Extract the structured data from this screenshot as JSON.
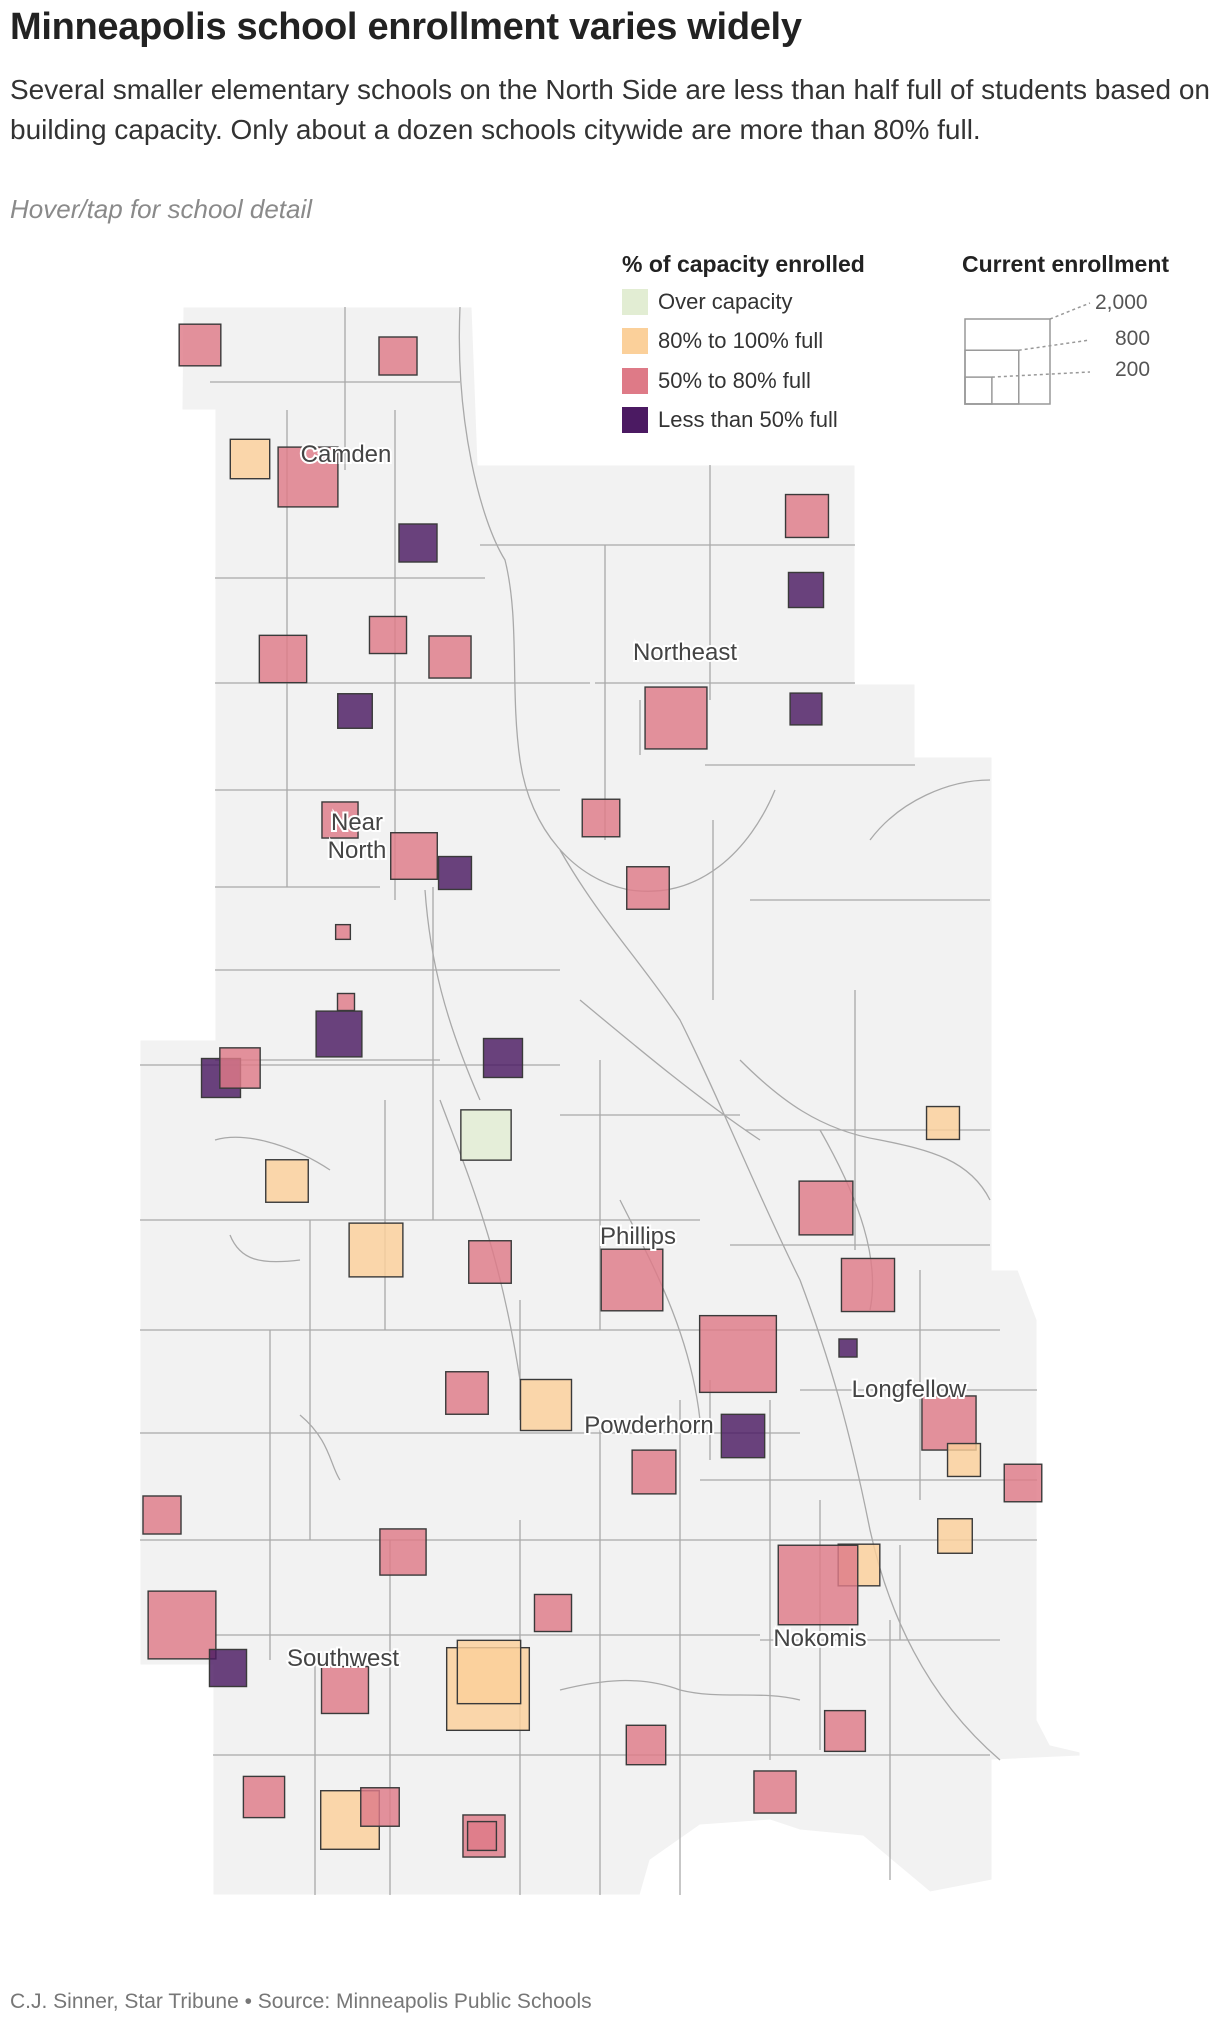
{
  "header": {
    "title": "Minneapolis school enrollment varies widely",
    "subtitle": "Several smaller elementary schools on the North Side are less than half full of students based on building capacity. Only about a dozen schools citywide are more than 80% full.",
    "hint": "Hover/tap for school detail"
  },
  "legend": {
    "color_title": "% of capacity enrolled",
    "color_items": [
      {
        "label": "Over capacity",
        "color": "#e2edd3"
      },
      {
        "label": "80% to 100% full",
        "color": "#fbd09a"
      },
      {
        "label": "50% to 80% full",
        "color": "#de7a87"
      },
      {
        "label": "Less than 50% full",
        "color": "#4b1a62"
      }
    ],
    "size_title": "Current enrollment",
    "size_items": [
      {
        "label": "2,000",
        "value": 2000
      },
      {
        "label": "800",
        "value": 800
      },
      {
        "label": "200",
        "value": 200
      }
    ]
  },
  "neighborhood_labels": [
    "Camden",
    "Northeast",
    "Near North",
    "Phillips",
    "Longfellow",
    "Powderhorn",
    "Southwest",
    "Nokomis"
  ],
  "schools": [
    {
      "category": "50% to 80% full",
      "enrollment": 480
    },
    {
      "category": "50% to 80% full",
      "enrollment": 400
    },
    {
      "category": "80% to 100% full",
      "enrollment": 430
    },
    {
      "category": "50% to 80% full",
      "enrollment": 990
    },
    {
      "category": "Less than 50% full",
      "enrollment": 400
    },
    {
      "category": "50% to 80% full",
      "enrollment": 380
    },
    {
      "category": "50% to 80% full",
      "enrollment": 620
    },
    {
      "category": "50% to 80% full",
      "enrollment": 490
    },
    {
      "category": "Less than 50% full",
      "enrollment": 300
    },
    {
      "category": "50% to 80% full",
      "enrollment": 1060
    },
    {
      "category": "50% to 80% full",
      "enrollment": 510
    },
    {
      "category": "Less than 50% full",
      "enrollment": 340
    },
    {
      "category": "Less than 50% full",
      "enrollment": 280
    },
    {
      "category": "50% to 80% full",
      "enrollment": 390
    },
    {
      "category": "50% to 80% full",
      "enrollment": 500
    },
    {
      "category": "Less than 50% full",
      "enrollment": 330
    },
    {
      "category": "50% to 80% full",
      "enrollment": 360
    },
    {
      "category": "50% to 80% full",
      "enrollment": 600
    },
    {
      "category": "50% to 80% full",
      "enrollment": 60
    },
    {
      "category": "50% to 80% full",
      "enrollment": 80
    },
    {
      "category": "Less than 50% full",
      "enrollment": 580
    },
    {
      "category": "Less than 50% full",
      "enrollment": 420
    },
    {
      "category": "50% to 80% full",
      "enrollment": 450
    },
    {
      "category": "Less than 50% full",
      "enrollment": 420
    },
    {
      "category": "Over capacity",
      "enrollment": 700
    },
    {
      "category": "80% to 100% full",
      "enrollment": 300
    },
    {
      "category": "80% to 100% full",
      "enrollment": 500
    },
    {
      "category": "50% to 80% full",
      "enrollment": 800
    },
    {
      "category": "80% to 100% full",
      "enrollment": 800
    },
    {
      "category": "50% to 80% full",
      "enrollment": 500
    },
    {
      "category": "50% to 80% full",
      "enrollment": 1050
    },
    {
      "category": "50% to 80% full",
      "enrollment": 780
    },
    {
      "category": "50% to 80% full",
      "enrollment": 1630
    },
    {
      "category": "Less than 50% full",
      "enrollment": 90
    },
    {
      "category": "50% to 80% full",
      "enrollment": 500
    },
    {
      "category": "80% to 100% full",
      "enrollment": 720
    },
    {
      "category": "50% to 80% full",
      "enrollment": 810
    },
    {
      "category": "Less than 50% full",
      "enrollment": 520
    },
    {
      "category": "50% to 80% full",
      "enrollment": 530
    },
    {
      "category": "80% to 100% full",
      "enrollment": 300
    },
    {
      "category": "50% to 80% full",
      "enrollment": 390
    },
    {
      "category": "80% to 100% full",
      "enrollment": 330
    },
    {
      "category": "50% to 80% full",
      "enrollment": 400
    },
    {
      "category": "80% to 100% full",
      "enrollment": 480
    },
    {
      "category": "50% to 80% full",
      "enrollment": 1270
    },
    {
      "category": "50% to 80% full",
      "enrollment": 590
    },
    {
      "category": "50% to 80% full",
      "enrollment": 380
    },
    {
      "category": "50% to 80% full",
      "enrollment": 1750
    },
    {
      "category": "Less than 50% full",
      "enrollment": 380
    },
    {
      "category": "50% to 80% full",
      "enrollment": 610
    },
    {
      "category": "80% to 100% full",
      "enrollment": 1890
    },
    {
      "category": "80% to 100% full",
      "enrollment": 1110
    },
    {
      "category": "50% to 80% full",
      "enrollment": 430
    },
    {
      "category": "50% to 80% full",
      "enrollment": 460
    },
    {
      "category": "50% to 80% full",
      "enrollment": 470
    },
    {
      "category": "50% to 80% full",
      "enrollment": 490
    },
    {
      "category": "80% to 100% full",
      "enrollment": 950
    },
    {
      "category": "50% to 80% full",
      "enrollment": 410
    },
    {
      "category": "50% to 80% full",
      "enrollment": 490
    },
    {
      "category": "50% to 80% full",
      "enrollment": 230
    }
  ],
  "footer": {
    "credit": "C.J. Sinner, Star Tribune • Source: Minneapolis Public Schools"
  }
}
